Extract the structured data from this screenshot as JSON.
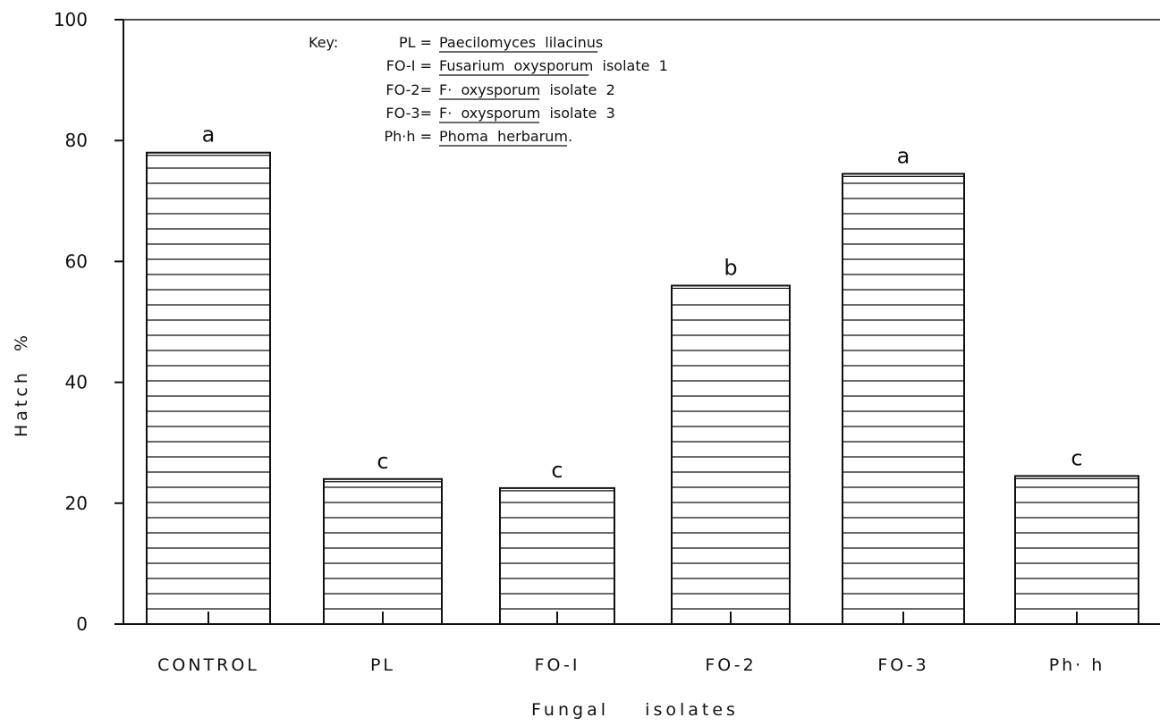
{
  "chart_data": {
    "type": "bar",
    "categories": [
      "CONTROL",
      "PL",
      "FO-I",
      "FO-2",
      "FO-3",
      "Ph· h"
    ],
    "values": [
      78,
      24,
      22.5,
      56,
      74.5,
      24.5
    ],
    "significance": [
      "a",
      "c",
      "c",
      "b",
      "a",
      "c"
    ],
    "xlabel": "Fungal    isolates",
    "ylabel": "Hatch  %",
    "ylim": [
      0,
      100
    ],
    "yticks": [
      "0",
      "20",
      "40",
      "60",
      "80",
      "100"
    ],
    "key": {
      "title": "Key:",
      "entries": [
        {
          "abbr": "PL =",
          "name": "Paecilomyces  lilacinus"
        },
        {
          "abbr": "FO-I =",
          "name": "Fusarium  oxysporum  isolate  1"
        },
        {
          "abbr": "FO-2=",
          "name": "F·  oxysporum  isolate  2"
        },
        {
          "abbr": "FO-3=",
          "name": "F·  oxysporum  isolate  3"
        },
        {
          "abbr": "Ph·h =",
          "name": "Phoma  herbarum."
        }
      ]
    },
    "bar_fill": "horizontal-hatch",
    "colors": {
      "ink": "#111111",
      "background": "#ffffff"
    }
  }
}
